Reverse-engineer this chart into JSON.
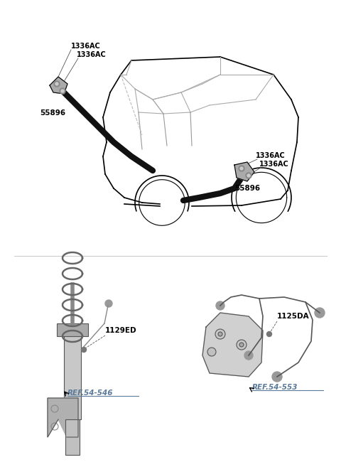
{
  "title": "",
  "background_color": "#ffffff",
  "fig_width": 4.8,
  "fig_height": 6.57,
  "dpi": 100,
  "labels": {
    "1336AC_top_left": "1336AC",
    "1336AC_top_left2": "1336AC",
    "55896_left": "55896",
    "1336AC_right": "1336AC",
    "1336AC_right2": "1336AC",
    "55896_right": "55896",
    "1129ED": "1129ED",
    "ref_54_546": "REF.54-546",
    "1125DA": "1125DA",
    "ref_54_553": "REF.54-553"
  },
  "label_color": "#000000",
  "ref_color": "#5b7a99",
  "car_color": "#000000",
  "part_color": "#888888",
  "line_color": "#000000",
  "sensor_color": "#555555",
  "coil_color": "#777777"
}
